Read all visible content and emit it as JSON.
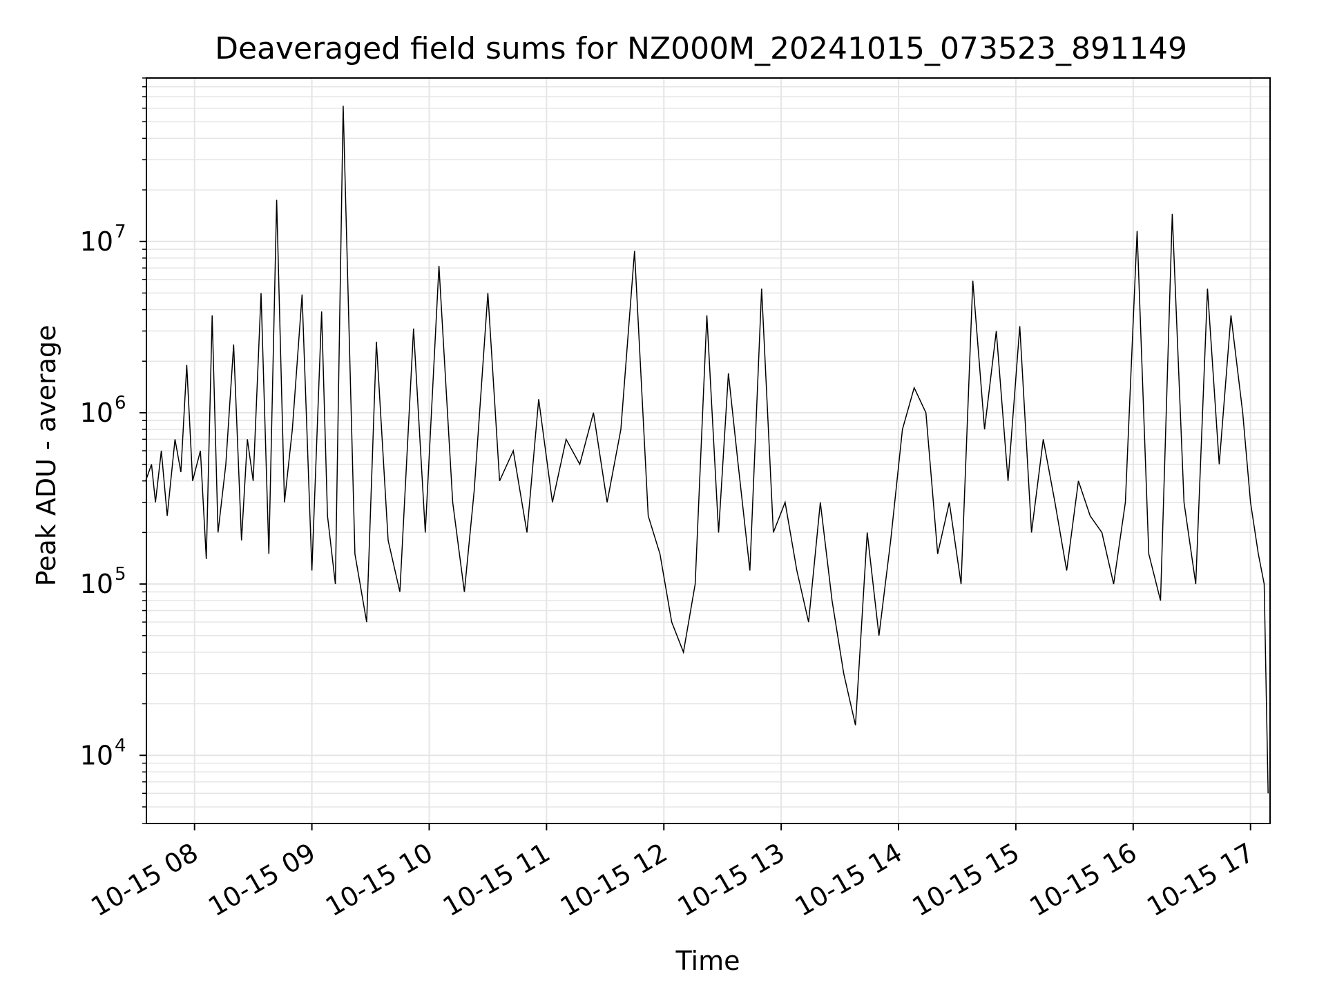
{
  "chart_data": {
    "type": "line",
    "title": "Deaveraged field sums for NZ000M_20241015_073523_891149",
    "xlabel": "Time",
    "ylabel": "Peak ADU - average",
    "yscale": "log",
    "ylim": [
      4000,
      90000000
    ],
    "xlim": [
      "2024-10-15 07:35:23",
      "2024-10-15 17:10:00"
    ],
    "grid": true,
    "grid_minor": true,
    "line_color": "#000000",
    "grid_color": "#e5e5e5",
    "x_ticks": [
      {
        "value": "2024-10-15 08:00",
        "label": "10-15 08"
      },
      {
        "value": "2024-10-15 09:00",
        "label": "10-15 09"
      },
      {
        "value": "2024-10-15 10:00",
        "label": "10-15 10"
      },
      {
        "value": "2024-10-15 11:00",
        "label": "10-15 11"
      },
      {
        "value": "2024-10-15 12:00",
        "label": "10-15 12"
      },
      {
        "value": "2024-10-15 13:00",
        "label": "10-15 13"
      },
      {
        "value": "2024-10-15 14:00",
        "label": "10-15 14"
      },
      {
        "value": "2024-10-15 15:00",
        "label": "10-15 15"
      },
      {
        "value": "2024-10-15 16:00",
        "label": "10-15 16"
      },
      {
        "value": "2024-10-15 17:00",
        "label": "10-15 17"
      }
    ],
    "y_ticks": [
      {
        "value": 10000,
        "base": "10",
        "exp": "4"
      },
      {
        "value": 100000,
        "base": "10",
        "exp": "5"
      },
      {
        "value": 1000000,
        "base": "10",
        "exp": "6"
      },
      {
        "value": 10000000,
        "base": "10",
        "exp": "7"
      }
    ],
    "series": [
      {
        "x": [
          "2024-10-15 07:35",
          "2024-10-15 07:38",
          "2024-10-15 07:40",
          "2024-10-15 07:43",
          "2024-10-15 07:46",
          "2024-10-15 07:50",
          "2024-10-15 07:53",
          "2024-10-15 07:56",
          "2024-10-15 07:59",
          "2024-10-15 08:03",
          "2024-10-15 08:06",
          "2024-10-15 08:09",
          "2024-10-15 08:12",
          "2024-10-15 08:16",
          "2024-10-15 08:20",
          "2024-10-15 08:24",
          "2024-10-15 08:27",
          "2024-10-15 08:30",
          "2024-10-15 08:34",
          "2024-10-15 08:38",
          "2024-10-15 08:42",
          "2024-10-15 08:46",
          "2024-10-15 08:50",
          "2024-10-15 08:55",
          "2024-10-15 09:00",
          "2024-10-15 09:05",
          "2024-10-15 09:08",
          "2024-10-15 09:12",
          "2024-10-15 09:16",
          "2024-10-15 09:22",
          "2024-10-15 09:28",
          "2024-10-15 09:33",
          "2024-10-15 09:39",
          "2024-10-15 09:45",
          "2024-10-15 09:52",
          "2024-10-15 09:58",
          "2024-10-15 10:05",
          "2024-10-15 10:12",
          "2024-10-15 10:18",
          "2024-10-15 10:23",
          "2024-10-15 10:30",
          "2024-10-15 10:36",
          "2024-10-15 10:43",
          "2024-10-15 10:50",
          "2024-10-15 10:56",
          "2024-10-15 11:03",
          "2024-10-15 11:10",
          "2024-10-15 11:17",
          "2024-10-15 11:24",
          "2024-10-15 11:31",
          "2024-10-15 11:38",
          "2024-10-15 11:45",
          "2024-10-15 11:52",
          "2024-10-15 11:58",
          "2024-10-15 12:04",
          "2024-10-15 12:10",
          "2024-10-15 12:16",
          "2024-10-15 12:22",
          "2024-10-15 12:28",
          "2024-10-15 12:33",
          "2024-10-15 12:38",
          "2024-10-15 12:44",
          "2024-10-15 12:50",
          "2024-10-15 12:56",
          "2024-10-15 13:02",
          "2024-10-15 13:08",
          "2024-10-15 13:14",
          "2024-10-15 13:20",
          "2024-10-15 13:26",
          "2024-10-15 13:32",
          "2024-10-15 13:38",
          "2024-10-15 13:44",
          "2024-10-15 13:50",
          "2024-10-15 13:56",
          "2024-10-15 14:02",
          "2024-10-15 14:08",
          "2024-10-15 14:14",
          "2024-10-15 14:20",
          "2024-10-15 14:26",
          "2024-10-15 14:32",
          "2024-10-15 14:38",
          "2024-10-15 14:44",
          "2024-10-15 14:50",
          "2024-10-15 14:56",
          "2024-10-15 15:02",
          "2024-10-15 15:08",
          "2024-10-15 15:14",
          "2024-10-15 15:20",
          "2024-10-15 15:26",
          "2024-10-15 15:32",
          "2024-10-15 15:38",
          "2024-10-15 15:44",
          "2024-10-15 15:50",
          "2024-10-15 15:56",
          "2024-10-15 16:02",
          "2024-10-15 16:08",
          "2024-10-15 16:14",
          "2024-10-15 16:20",
          "2024-10-15 16:26",
          "2024-10-15 16:32",
          "2024-10-15 16:38",
          "2024-10-15 16:44",
          "2024-10-15 16:50",
          "2024-10-15 16:56",
          "2024-10-15 17:00",
          "2024-10-15 17:04",
          "2024-10-15 17:07",
          "2024-10-15 17:09"
        ],
        "values": [
          400000,
          500000,
          300000,
          600000,
          250000,
          700000,
          450000,
          1900000,
          400000,
          600000,
          140000,
          3700000,
          200000,
          500000,
          2500000,
          180000,
          700000,
          400000,
          5000000,
          150000,
          17500000,
          300000,
          800000,
          4900000,
          120000,
          3900000,
          250000,
          100000,
          62000000,
          150000,
          60000,
          2600000,
          180000,
          90000,
          3100000,
          200000,
          7200000,
          300000,
          90000,
          350000,
          5000000,
          400000,
          600000,
          200000,
          1200000,
          300000,
          700000,
          500000,
          1000000,
          300000,
          800000,
          8800000,
          250000,
          150000,
          60000,
          40000,
          100000,
          3700000,
          200000,
          1700000,
          500000,
          120000,
          5300000,
          200000,
          300000,
          120000,
          60000,
          300000,
          80000,
          30000,
          15000,
          200000,
          50000,
          180000,
          800000,
          1400000,
          1000000,
          150000,
          300000,
          100000,
          5900000,
          800000,
          3000000,
          400000,
          3200000,
          200000,
          700000,
          300000,
          120000,
          400000,
          250000,
          200000,
          100000,
          300000,
          11500000,
          150000,
          80000,
          14500000,
          300000,
          100000,
          5300000,
          500000,
          3700000,
          1000000,
          300000,
          150000,
          100000,
          6000
        ]
      }
    ]
  }
}
